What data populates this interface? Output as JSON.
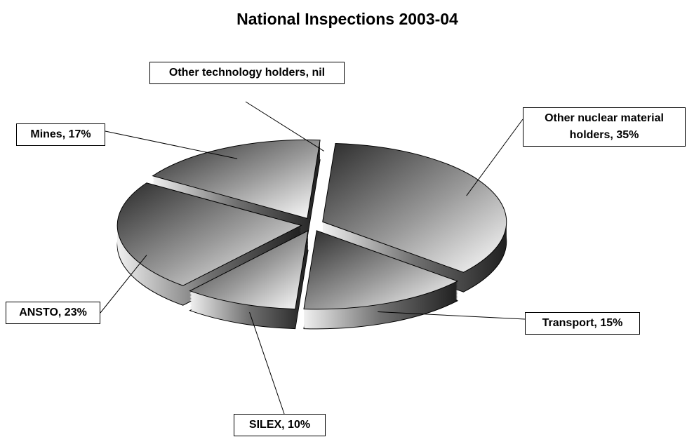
{
  "chart_data": {
    "type": "pie3d",
    "title": "National Inspections 2003-04",
    "values": [
      35,
      15,
      10,
      23,
      17,
      0
    ],
    "value_labels": [
      "Other nuclear material holders, 35%",
      "Transport, 15%",
      "SILEX, 10%",
      "ANSTO, 23%",
      "Mines, 17%",
      "Other technology holders, nil"
    ]
  }
}
